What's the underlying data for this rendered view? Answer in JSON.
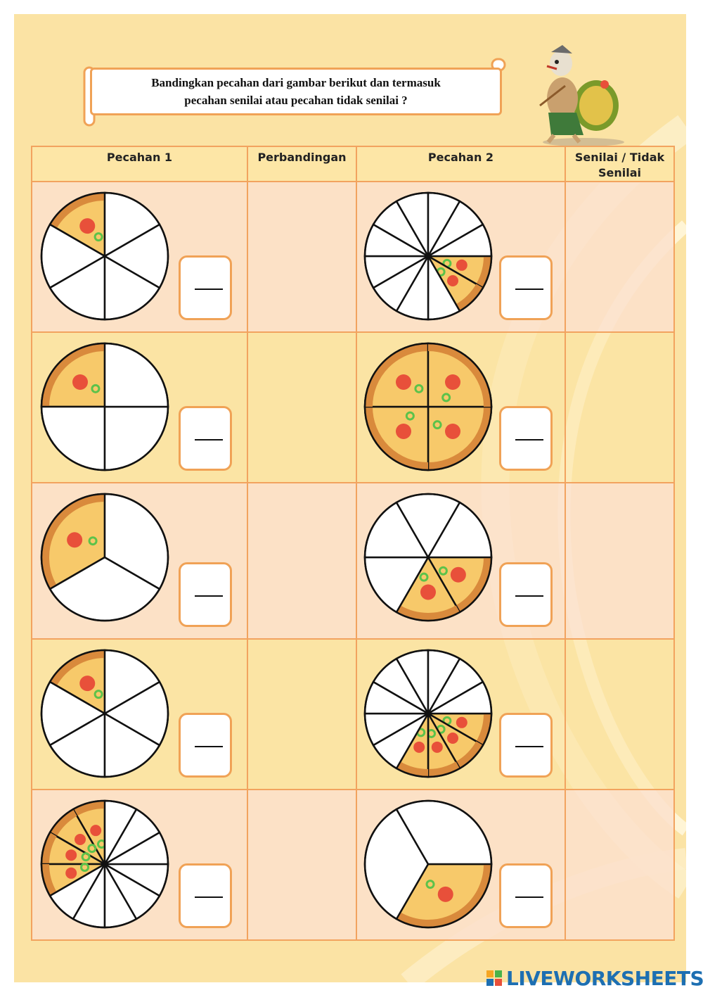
{
  "instruction": {
    "line1": "Bandingkan pecahan dari gambar berikut dan termasuk",
    "line2": "pecahan senilai atau pecahan tidak senilai ?"
  },
  "table": {
    "headers": [
      "Pecahan 1",
      "Perbandingan",
      "Pecahan 2",
      "Senilai / Tidak Senilai"
    ],
    "rows": [
      {
        "pecahan1": {
          "slices": 6,
          "filled": 1
        },
        "pecahan2": {
          "slices": 12,
          "filled": 2
        }
      },
      {
        "pecahan1": {
          "slices": 4,
          "filled": 1
        },
        "pecahan2": {
          "slices": 4,
          "filled": 4
        }
      },
      {
        "pecahan1": {
          "slices": 3,
          "filled": 1
        },
        "pecahan2": {
          "slices": 6,
          "filled": 2
        }
      },
      {
        "pecahan1": {
          "slices": 6,
          "filled": 1
        },
        "pecahan2": {
          "slices": 12,
          "filled": 4
        }
      },
      {
        "pecahan1": {
          "slices": 12,
          "filled": 4
        },
        "pecahan2": {
          "slices": 3,
          "filled": 1
        }
      }
    ]
  },
  "answer_placeholder": "—",
  "footer": {
    "brand": "LIVEWORKSHEETS"
  },
  "colors": {
    "background": "#fbe3a4",
    "border": "#f0a256",
    "pizza_crust": "#d98a3c",
    "pizza_cheese": "#f7c96a",
    "pepperoni": "#e8503a",
    "pepper": "#5cc24a",
    "brand": "#1d6fb2"
  }
}
